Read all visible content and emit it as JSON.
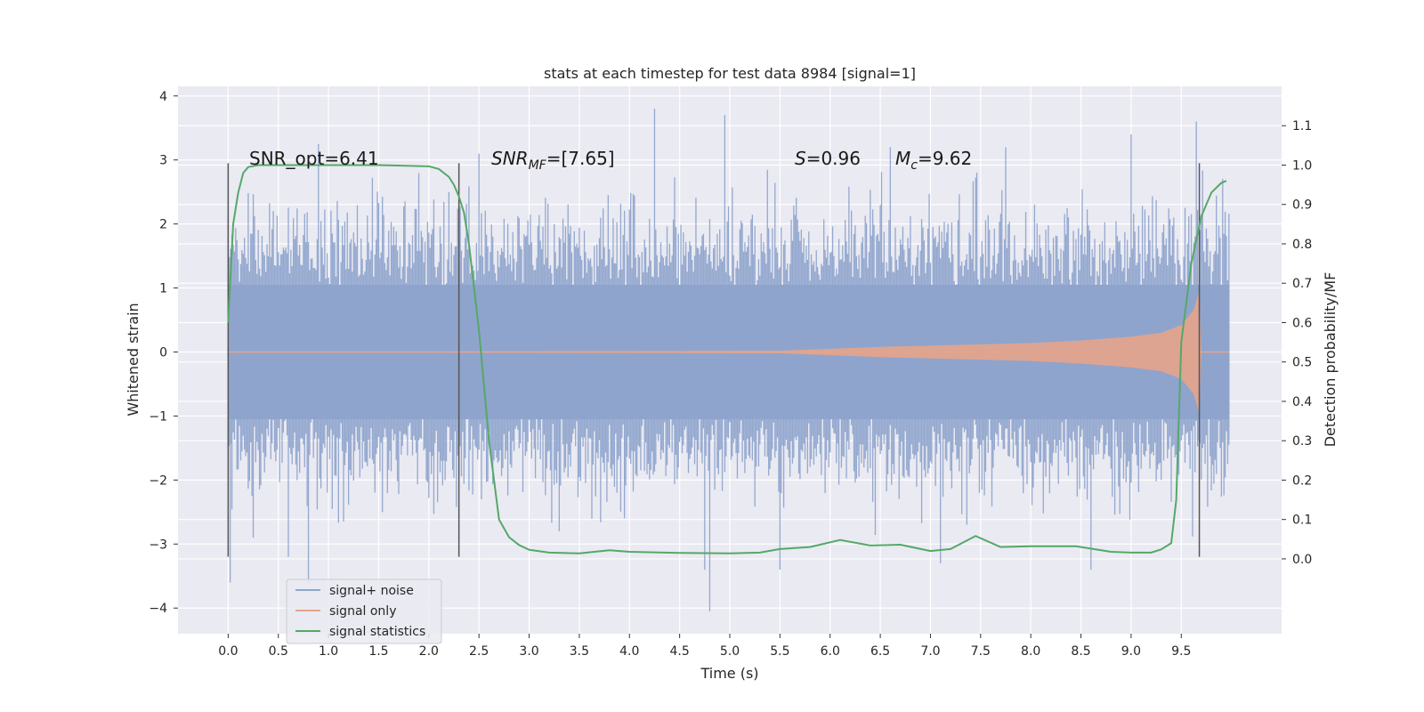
{
  "chart_data": {
    "type": "line",
    "title": "stats at each timestep for test data 8984 [signal=1]",
    "xlabel": "Time (s)",
    "ylabel": "Whitened strain",
    "y2label": "Detection probability/MF",
    "xlim": [
      -0.5,
      10.5
    ],
    "ylim": [
      -4.4,
      4.15
    ],
    "y2lim": [
      -0.19,
      1.2
    ],
    "x_ticks": [
      0.0,
      0.5,
      1.0,
      1.5,
      2.0,
      2.5,
      3.0,
      3.5,
      4.0,
      4.5,
      5.0,
      5.5,
      6.0,
      6.5,
      7.0,
      7.5,
      8.0,
      8.5,
      9.0,
      9.5
    ],
    "y_ticks": [
      -4,
      -3,
      -2,
      -1,
      0,
      1,
      2,
      3,
      4
    ],
    "y2_ticks": [
      0.0,
      0.1,
      0.2,
      0.3,
      0.4,
      0.5,
      0.6,
      0.7,
      0.8,
      0.9,
      1.0,
      1.1
    ],
    "grid": true,
    "legend_position": "lower-left",
    "series": [
      {
        "name": "signal+ noise",
        "axis": "left",
        "color": "#8fa4cc",
        "sample_interval_s": 0.004,
        "envelope_typical": [
          -2.3,
          2.3
        ],
        "peaks": [
          {
            "x": 0.02,
            "y": -3.6
          },
          {
            "x": 0.25,
            "y": -2.9
          },
          {
            "x": 0.6,
            "y": -3.2
          },
          {
            "x": 0.8,
            "y": -3.6
          },
          {
            "x": 0.9,
            "y": 3.25
          },
          {
            "x": 2.5,
            "y": 3.1
          },
          {
            "x": 3.3,
            "y": -2.8
          },
          {
            "x": 4.25,
            "y": 3.8
          },
          {
            "x": 4.75,
            "y": -3.4
          },
          {
            "x": 4.8,
            "y": -4.05
          },
          {
            "x": 4.95,
            "y": 3.7
          },
          {
            "x": 5.5,
            "y": -3.4
          },
          {
            "x": 6.6,
            "y": 3.2
          },
          {
            "x": 7.1,
            "y": -3.3
          },
          {
            "x": 7.75,
            "y": 3.2
          },
          {
            "x": 8.6,
            "y": -3.4
          },
          {
            "x": 9.0,
            "y": 3.4
          },
          {
            "x": 9.65,
            "y": 3.6
          }
        ]
      },
      {
        "name": "signal only",
        "axis": "left",
        "color": "#e5a48b",
        "x": [
          0.0,
          5.5,
          6.0,
          6.5,
          7.0,
          7.5,
          8.0,
          8.5,
          9.0,
          9.3,
          9.5,
          9.62,
          9.68,
          9.7,
          10.0
        ],
        "amplitude": [
          0.0,
          0.02,
          0.05,
          0.08,
          0.1,
          0.12,
          0.14,
          0.18,
          0.24,
          0.3,
          0.42,
          0.65,
          0.95,
          0.0,
          0.0
        ]
      },
      {
        "name": "signal statistics",
        "axis": "right",
        "color": "#55a868",
        "x": [
          0.0,
          0.05,
          0.1,
          0.15,
          0.2,
          0.3,
          0.5,
          1.0,
          1.5,
          2.0,
          2.1,
          2.2,
          2.25,
          2.3,
          2.35,
          2.4,
          2.5,
          2.6,
          2.7,
          2.8,
          2.9,
          3.0,
          3.2,
          3.5,
          3.8,
          4.0,
          4.5,
          5.0,
          5.3,
          5.5,
          5.8,
          6.1,
          6.4,
          6.7,
          7.0,
          7.2,
          7.45,
          7.7,
          8.0,
          8.45,
          8.8,
          9.0,
          9.2,
          9.3,
          9.4,
          9.45,
          9.5,
          9.6,
          9.7,
          9.8,
          9.9,
          9.95
        ],
        "y": [
          0.6,
          0.85,
          0.93,
          0.98,
          0.995,
          1.0,
          1.0,
          1.0,
          1.0,
          0.997,
          0.99,
          0.97,
          0.95,
          0.92,
          0.88,
          0.8,
          0.58,
          0.3,
          0.1,
          0.055,
          0.035,
          0.023,
          0.016,
          0.014,
          0.022,
          0.018,
          0.015,
          0.014,
          0.016,
          0.025,
          0.03,
          0.048,
          0.034,
          0.036,
          0.02,
          0.025,
          0.058,
          0.03,
          0.032,
          0.032,
          0.018,
          0.016,
          0.016,
          0.024,
          0.04,
          0.15,
          0.55,
          0.75,
          0.87,
          0.93,
          0.955,
          0.96
        ]
      }
    ],
    "vertical_lines": [
      0.0,
      2.3,
      9.68
    ],
    "vertical_line_span": [
      -3.2,
      2.95
    ],
    "annotations": {
      "snr_opt": "SNR_opt=6.41",
      "snr_mf_main": "SNR",
      "snr_mf_sub": "MF",
      "snr_mf_value": "=[7.65]",
      "s_main": "S",
      "s_value": "=0.96",
      "mc_main": "M",
      "mc_sub": "c",
      "mc_value": "=9.62"
    }
  }
}
